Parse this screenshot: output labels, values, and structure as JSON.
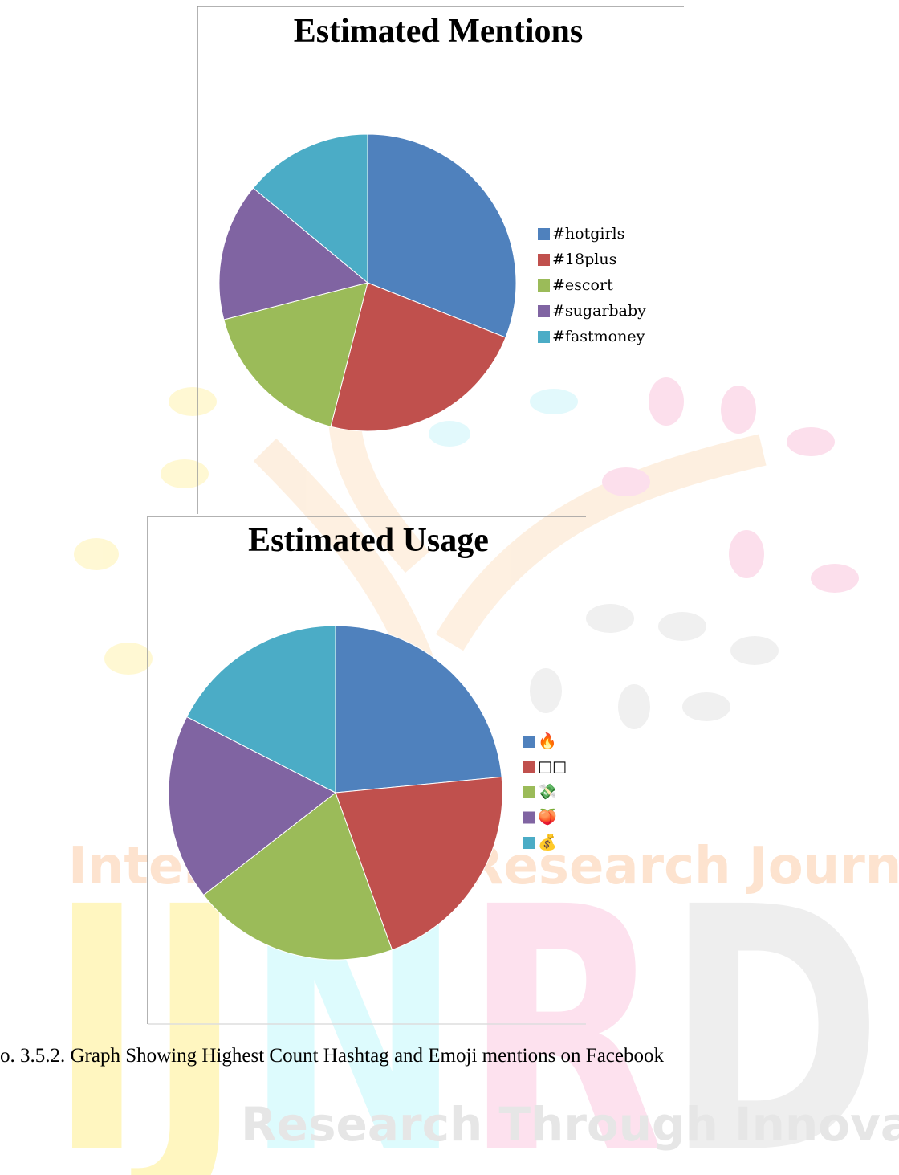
{
  "chart_data": [
    {
      "type": "pie",
      "title": "Estimated Mentions",
      "categories": [
        "#hotgirls",
        "#18plus",
        "#escort",
        "#sugarbaby",
        "#fastmoney"
      ],
      "values": [
        31,
        23,
        17,
        15,
        14
      ],
      "colors": [
        "#4f81bd",
        "#c0504d",
        "#9bbb59",
        "#8064a2",
        "#4bacc6"
      ],
      "legend": "right"
    },
    {
      "type": "pie",
      "title": "Estimated Usage",
      "categories": [
        "🔥",
        "□□",
        "💸",
        "🍑",
        "💰"
      ],
      "values": [
        23.5,
        21,
        20,
        18,
        17.5
      ],
      "colors": [
        "#4f81bd",
        "#c0504d",
        "#9bbb59",
        "#8064a2",
        "#4bacc6"
      ],
      "legend": "right"
    }
  ],
  "caption": "o. 3.5.2. Graph Showing Highest Count Hashtag and Emoji mentions on Facebook",
  "watermark": {
    "top": "International Research Journal",
    "logo": "IJNRD",
    "tagline": "Research Through Innovation"
  }
}
